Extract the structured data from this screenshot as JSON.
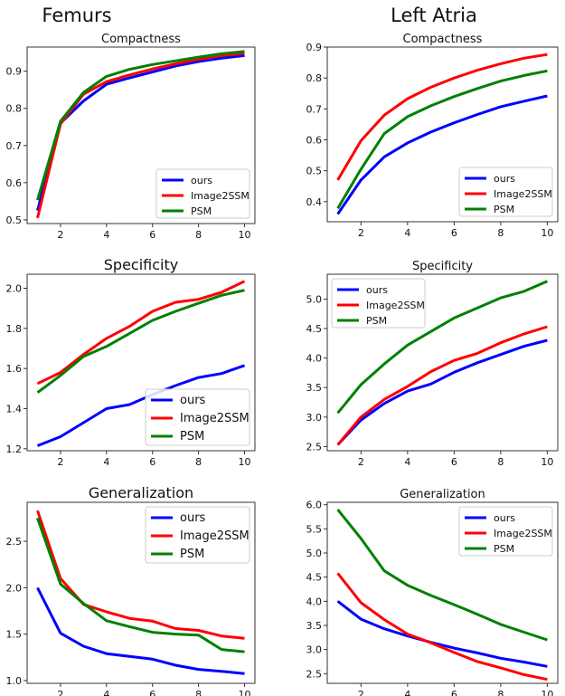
{
  "column_headers": [
    "Femurs",
    "Left Atria"
  ],
  "colors": {
    "ours": "#0000ff",
    "Image2SSM": "#ff0000",
    "PSM": "#008000"
  },
  "chart_data": [
    {
      "type": "line",
      "group": "Femurs",
      "title": "Compactness",
      "x": [
        1,
        2,
        3,
        4,
        5,
        6,
        7,
        8,
        9,
        10
      ],
      "xticks": [
        2,
        4,
        6,
        8,
        10
      ],
      "yticks": [
        0.5,
        0.6,
        0.7,
        0.8,
        0.9
      ],
      "ylim": [
        0.49,
        0.965
      ],
      "xlim": [
        0.55,
        10.45
      ],
      "legend": "bottom-right",
      "series": [
        {
          "name": "ours",
          "values": [
            0.525,
            0.76,
            0.82,
            0.865,
            0.882,
            0.898,
            0.914,
            0.926,
            0.935,
            0.942
          ]
        },
        {
          "name": "Image2SSM",
          "values": [
            0.505,
            0.758,
            0.838,
            0.872,
            0.89,
            0.906,
            0.92,
            0.932,
            0.942,
            0.948
          ]
        },
        {
          "name": "PSM",
          "values": [
            0.553,
            0.765,
            0.843,
            0.886,
            0.905,
            0.918,
            0.928,
            0.938,
            0.947,
            0.953
          ]
        }
      ]
    },
    {
      "type": "line",
      "group": "Left Atria",
      "title": "Compactness",
      "x": [
        1,
        2,
        3,
        4,
        5,
        6,
        7,
        8,
        9,
        10
      ],
      "xticks": [
        2,
        4,
        6,
        8,
        10
      ],
      "yticks": [
        0.4,
        0.5,
        0.6,
        0.7,
        0.8,
        0.9
      ],
      "ylim": [
        0.335,
        0.9
      ],
      "xlim": [
        0.55,
        10.45
      ],
      "legend": "bottom-right",
      "series": [
        {
          "name": "ours",
          "values": [
            0.36,
            0.47,
            0.545,
            0.59,
            0.625,
            0.655,
            0.682,
            0.707,
            0.725,
            0.742
          ]
        },
        {
          "name": "Image2SSM",
          "values": [
            0.47,
            0.597,
            0.68,
            0.733,
            0.77,
            0.8,
            0.825,
            0.846,
            0.864,
            0.876
          ]
        },
        {
          "name": "PSM",
          "values": [
            0.378,
            0.505,
            0.62,
            0.675,
            0.71,
            0.74,
            0.766,
            0.79,
            0.808,
            0.823
          ]
        }
      ]
    },
    {
      "type": "line",
      "group": "Femurs",
      "title": "Specificity",
      "x": [
        1,
        2,
        3,
        4,
        5,
        6,
        7,
        8,
        9,
        10
      ],
      "xticks": [
        2,
        4,
        6,
        8,
        10
      ],
      "yticks": [
        1.2,
        1.4,
        1.6,
        1.8,
        2.0
      ],
      "ylim": [
        1.19,
        2.07
      ],
      "xlim": [
        0.55,
        10.45
      ],
      "legend": "bottom-right",
      "series": [
        {
          "name": "ours",
          "values": [
            1.215,
            1.26,
            1.33,
            1.4,
            1.42,
            1.47,
            1.515,
            1.555,
            1.575,
            1.615
          ]
        },
        {
          "name": "Image2SSM",
          "values": [
            1.525,
            1.58,
            1.67,
            1.75,
            1.81,
            1.885,
            1.93,
            1.945,
            1.98,
            2.035
          ]
        },
        {
          "name": "PSM",
          "values": [
            1.48,
            1.565,
            1.66,
            1.71,
            1.775,
            1.84,
            1.885,
            1.925,
            1.965,
            1.99
          ]
        }
      ]
    },
    {
      "type": "line",
      "group": "Left Atria",
      "title": "Specificity",
      "x": [
        1,
        2,
        3,
        4,
        5,
        6,
        7,
        8,
        9,
        10
      ],
      "xticks": [
        2,
        4,
        6,
        8,
        10
      ],
      "yticks": [
        2.5,
        3.0,
        3.5,
        4.0,
        4.5,
        5.0
      ],
      "ylim": [
        2.43,
        5.42
      ],
      "xlim": [
        0.55,
        10.45
      ],
      "legend": "top-left",
      "series": [
        {
          "name": "ours",
          "values": [
            2.53,
            2.95,
            3.23,
            3.44,
            3.56,
            3.76,
            3.92,
            4.06,
            4.2,
            4.3
          ]
        },
        {
          "name": "Image2SSM",
          "values": [
            2.53,
            3.0,
            3.3,
            3.52,
            3.77,
            3.96,
            4.08,
            4.26,
            4.41,
            4.53
          ]
        },
        {
          "name": "PSM",
          "values": [
            3.07,
            3.55,
            3.9,
            4.22,
            4.45,
            4.68,
            4.85,
            5.02,
            5.13,
            5.3
          ]
        }
      ]
    },
    {
      "type": "line",
      "group": "Femurs",
      "title": "Generalization",
      "x": [
        1,
        2,
        3,
        4,
        5,
        6,
        7,
        8,
        9,
        10
      ],
      "xticks": [
        2,
        4,
        6,
        8,
        10
      ],
      "yticks": [
        1.0,
        1.5,
        2.0,
        2.5
      ],
      "ylim": [
        0.97,
        2.92
      ],
      "xlim": [
        0.55,
        10.45
      ],
      "legend": "top-right",
      "series": [
        {
          "name": "ours",
          "values": [
            2.0,
            1.51,
            1.37,
            1.29,
            1.26,
            1.23,
            1.165,
            1.12,
            1.1,
            1.075
          ]
        },
        {
          "name": "Image2SSM",
          "values": [
            2.83,
            2.1,
            1.82,
            1.74,
            1.67,
            1.64,
            1.56,
            1.54,
            1.48,
            1.455
          ]
        },
        {
          "name": "PSM",
          "values": [
            2.75,
            2.04,
            1.83,
            1.645,
            1.58,
            1.52,
            1.5,
            1.49,
            1.335,
            1.31
          ]
        }
      ]
    },
    {
      "type": "line",
      "group": "Left Atria",
      "title": "Generalization",
      "x": [
        1,
        2,
        3,
        4,
        5,
        6,
        7,
        8,
        9,
        10
      ],
      "xticks": [
        2,
        4,
        6,
        8,
        10
      ],
      "yticks": [
        2.5,
        3.0,
        3.5,
        4.0,
        4.5,
        5.0,
        5.5,
        6.0
      ],
      "ylim": [
        2.3,
        6.05
      ],
      "xlim": [
        0.55,
        10.45
      ],
      "legend": "top-right",
      "series": [
        {
          "name": "ours",
          "values": [
            4.0,
            3.63,
            3.43,
            3.28,
            3.15,
            3.03,
            2.93,
            2.82,
            2.74,
            2.65
          ]
        },
        {
          "name": "Image2SSM",
          "values": [
            4.58,
            3.97,
            3.62,
            3.32,
            3.14,
            2.94,
            2.75,
            2.62,
            2.48,
            2.38
          ]
        },
        {
          "name": "PSM",
          "values": [
            5.9,
            5.3,
            4.63,
            4.33,
            4.12,
            3.93,
            3.73,
            3.52,
            3.36,
            3.2
          ]
        }
      ]
    }
  ]
}
